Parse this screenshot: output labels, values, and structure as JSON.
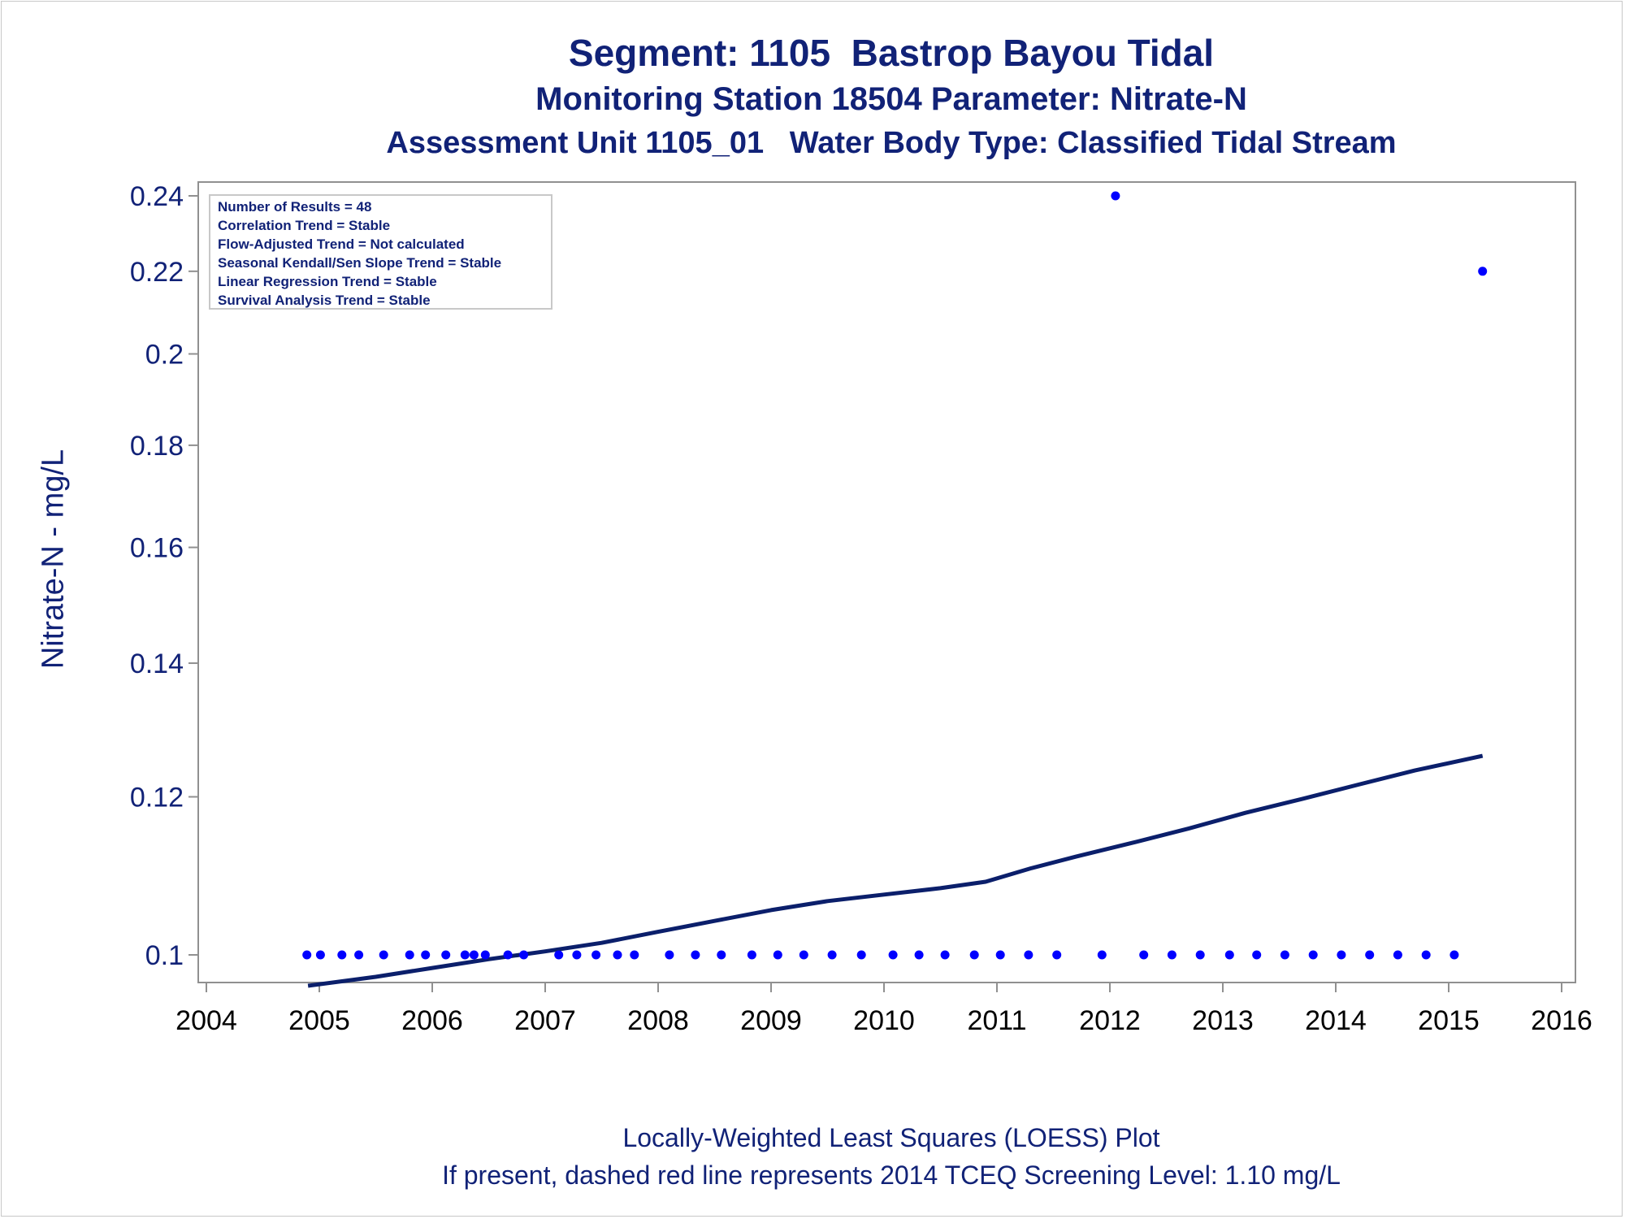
{
  "titles": {
    "line1": "Segment: 1105  Bastrop Bayou Tidal",
    "line2": "Monitoring Station 18504 Parameter: Nitrate-N",
    "line3": "Assessment Unit 1105_01   Water Body Type: Classified Tidal Stream"
  },
  "footnotes": {
    "line1": "Locally-Weighted Least Squares (LOESS) Plot",
    "line2": "If present, dashed red line represents 2014 TCEQ Screening Level: 1.10 mg/L"
  },
  "stats_box": [
    "Number of Results = 48",
    "Correlation Trend = Stable",
    "Flow-Adjusted Trend = Not calculated",
    "Seasonal Kendall/Sen Slope Trend = Stable",
    "Linear Regression Trend = Stable",
    "Survival Analysis Trend = Stable"
  ],
  "colors": {
    "text": "#112277",
    "points": "#0000ff",
    "loess": "#0b1f6b",
    "axis": "#909090"
  },
  "chart_data": {
    "type": "scatter",
    "ylabel": "Nitrate-N - mg/L",
    "xlim": [
      2004,
      2016
    ],
    "ylim": [
      0.095,
      0.243
    ],
    "y_scale": "log",
    "xticks": [
      2004,
      2005,
      2006,
      2007,
      2008,
      2009,
      2010,
      2011,
      2012,
      2013,
      2014,
      2015,
      2016
    ],
    "yticks": [
      0.1,
      0.12,
      0.14,
      0.16,
      0.18,
      0.2,
      0.22,
      0.24
    ],
    "ytick_labels": [
      "0.1",
      "0.12",
      "0.14",
      "0.16",
      "0.18",
      "0.2",
      "0.22",
      "0.24"
    ],
    "points": [
      {
        "x": 2004.89,
        "y": 0.1
      },
      {
        "x": 2005.01,
        "y": 0.1
      },
      {
        "x": 2005.2,
        "y": 0.1
      },
      {
        "x": 2005.35,
        "y": 0.1
      },
      {
        "x": 2005.57,
        "y": 0.1
      },
      {
        "x": 2005.8,
        "y": 0.1
      },
      {
        "x": 2005.94,
        "y": 0.1
      },
      {
        "x": 2006.12,
        "y": 0.1
      },
      {
        "x": 2006.29,
        "y": 0.1
      },
      {
        "x": 2006.37,
        "y": 0.1
      },
      {
        "x": 2006.47,
        "y": 0.1
      },
      {
        "x": 2006.67,
        "y": 0.1
      },
      {
        "x": 2006.81,
        "y": 0.1
      },
      {
        "x": 2007.12,
        "y": 0.1
      },
      {
        "x": 2007.28,
        "y": 0.1
      },
      {
        "x": 2007.45,
        "y": 0.1
      },
      {
        "x": 2007.64,
        "y": 0.1
      },
      {
        "x": 2007.79,
        "y": 0.1
      },
      {
        "x": 2008.1,
        "y": 0.1
      },
      {
        "x": 2008.33,
        "y": 0.1
      },
      {
        "x": 2008.56,
        "y": 0.1
      },
      {
        "x": 2008.83,
        "y": 0.1
      },
      {
        "x": 2009.06,
        "y": 0.1
      },
      {
        "x": 2009.29,
        "y": 0.1
      },
      {
        "x": 2009.54,
        "y": 0.1
      },
      {
        "x": 2009.8,
        "y": 0.1
      },
      {
        "x": 2010.08,
        "y": 0.1
      },
      {
        "x": 2010.31,
        "y": 0.1
      },
      {
        "x": 2010.54,
        "y": 0.1
      },
      {
        "x": 2010.8,
        "y": 0.1
      },
      {
        "x": 2011.03,
        "y": 0.1
      },
      {
        "x": 2011.28,
        "y": 0.1
      },
      {
        "x": 2011.53,
        "y": 0.1
      },
      {
        "x": 2011.93,
        "y": 0.1
      },
      {
        "x": 2012.05,
        "y": 0.24
      },
      {
        "x": 2012.3,
        "y": 0.1
      },
      {
        "x": 2012.55,
        "y": 0.1
      },
      {
        "x": 2012.8,
        "y": 0.1
      },
      {
        "x": 2013.06,
        "y": 0.1
      },
      {
        "x": 2013.3,
        "y": 0.1
      },
      {
        "x": 2013.55,
        "y": 0.1
      },
      {
        "x": 2013.8,
        "y": 0.1
      },
      {
        "x": 2014.05,
        "y": 0.1
      },
      {
        "x": 2014.3,
        "y": 0.1
      },
      {
        "x": 2014.55,
        "y": 0.1
      },
      {
        "x": 2014.8,
        "y": 0.1
      },
      {
        "x": 2015.05,
        "y": 0.1
      },
      {
        "x": 2015.3,
        "y": 0.22
      }
    ],
    "loess_line": [
      {
        "x": 2004.9,
        "y": 0.0965
      },
      {
        "x": 2005.5,
        "y": 0.0975
      },
      {
        "x": 2006.0,
        "y": 0.0985
      },
      {
        "x": 2006.5,
        "y": 0.0995
      },
      {
        "x": 2007.0,
        "y": 0.1004
      },
      {
        "x": 2007.5,
        "y": 0.1014
      },
      {
        "x": 2008.0,
        "y": 0.1027
      },
      {
        "x": 2008.5,
        "y": 0.104
      },
      {
        "x": 2009.0,
        "y": 0.1053
      },
      {
        "x": 2009.5,
        "y": 0.1064
      },
      {
        "x": 2010.0,
        "y": 0.1072
      },
      {
        "x": 2010.5,
        "y": 0.108
      },
      {
        "x": 2010.9,
        "y": 0.1088
      },
      {
        "x": 2011.3,
        "y": 0.1105
      },
      {
        "x": 2011.7,
        "y": 0.112
      },
      {
        "x": 2012.2,
        "y": 0.1138
      },
      {
        "x": 2012.7,
        "y": 0.1157
      },
      {
        "x": 2013.2,
        "y": 0.1178
      },
      {
        "x": 2013.7,
        "y": 0.1197
      },
      {
        "x": 2014.2,
        "y": 0.1217
      },
      {
        "x": 2014.7,
        "y": 0.1237
      },
      {
        "x": 2015.3,
        "y": 0.1258
      }
    ]
  }
}
